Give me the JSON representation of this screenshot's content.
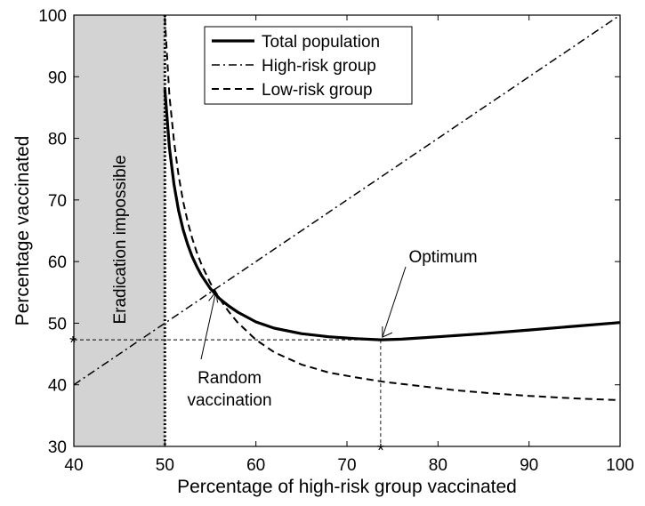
{
  "chart_data": {
    "type": "line",
    "title": "",
    "xlabel": "Percentage of high-risk group vaccinated",
    "ylabel": "Percentage vaccinated",
    "xlim": [
      40,
      100
    ],
    "ylim": [
      30,
      100
    ],
    "xticks": [
      40,
      50,
      60,
      70,
      80,
      90,
      100
    ],
    "yticks": [
      30,
      40,
      50,
      60,
      70,
      80,
      90,
      100
    ],
    "grid": false,
    "legend_position": "top",
    "series": [
      {
        "name": "Total population",
        "style": "solid-thick",
        "x": [
          50.0,
          50.5,
          51.0,
          51.5,
          52.0,
          52.5,
          53.0,
          53.5,
          54.0,
          55.0,
          56.0,
          57.0,
          58.0,
          60.0,
          62.0,
          65.0,
          68.0,
          71.0,
          73.7,
          76.0,
          80.0,
          85.0,
          90.0,
          95.0,
          100.0
        ],
        "values": [
          88.0,
          78.5,
          72.5,
          68.3,
          65.2,
          62.8,
          60.8,
          59.2,
          57.8,
          55.6,
          54.0,
          52.8,
          51.8,
          50.2,
          49.2,
          48.3,
          47.8,
          47.5,
          47.3,
          47.4,
          47.8,
          48.3,
          48.9,
          49.5,
          50.1
        ]
      },
      {
        "name": "High-risk group",
        "style": "dash-dot",
        "x": [
          40,
          100
        ],
        "values": [
          40,
          100
        ]
      },
      {
        "name": "Low-risk group",
        "style": "dashed",
        "x": [
          50.0,
          50.5,
          51.0,
          51.5,
          52.0,
          52.5,
          53.0,
          53.5,
          54.0,
          55.0,
          56.0,
          57.0,
          58.0,
          60.0,
          62.0,
          65.0,
          68.0,
          71.0,
          74.0,
          78.0,
          82.0,
          86.0,
          90.0,
          95.0,
          100.0
        ],
        "values": [
          99.5,
          87.0,
          79.5,
          74.0,
          69.8,
          66.5,
          63.8,
          61.5,
          59.6,
          56.5,
          54.0,
          51.9,
          50.1,
          47.3,
          45.3,
          43.3,
          42.0,
          41.2,
          40.5,
          39.8,
          39.1,
          38.6,
          38.2,
          37.8,
          37.5
        ]
      }
    ],
    "shaded_region": {
      "x": [
        40,
        50
      ],
      "color": "#d3d3d3",
      "label": "Eradication impossible"
    },
    "boundary_line_x": 50,
    "annotations": {
      "optimum": {
        "label": "Optimum",
        "x": 73.7,
        "y": 47.3
      },
      "random": {
        "label_line1": "Random",
        "label_line2": "vaccination",
        "x": 55.5,
        "y": 55.5
      },
      "marker_symbol": "*"
    }
  }
}
